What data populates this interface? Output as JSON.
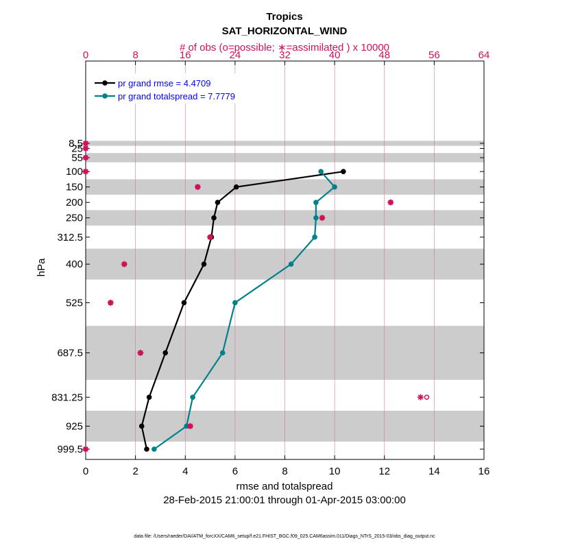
{
  "chart_data": {
    "type": "line",
    "title": "Tropics",
    "subtitle": "SAT_HORIZONTAL_WIND",
    "top_axis_label": "# of obs (o=possible; ∗=assimilated ) x 10000",
    "top_ticks": [
      "0",
      "8",
      "16",
      "24",
      "32",
      "40",
      "48",
      "56",
      "64"
    ],
    "top_range": [
      0,
      64
    ],
    "xlabel": "rmse and totalspread",
    "x_ticks": [
      "0",
      "2",
      "4",
      "6",
      "8",
      "10",
      "12",
      "14",
      "16"
    ],
    "xlim": [
      0,
      16
    ],
    "ylabel": "hPa",
    "y_levels": [
      8.5,
      25,
      55,
      100,
      150,
      200,
      250,
      312.5,
      400,
      525,
      687.5,
      831.25,
      925,
      999.5
    ],
    "y_tick_labels": [
      "8.5",
      "25",
      "55",
      "100",
      "150",
      "200",
      "250",
      "312.5",
      "400",
      "525",
      "687.5",
      "831.25",
      "925",
      "999.5"
    ],
    "date_range": "28-Feb-2015 21:00:01 through 01-Apr-2015 03:00:00",
    "footnote": "data file: /Users/raeder/DAI/ATM_forcXX/CAM6_setup/f.e21.FHIST_BGC.f09_025.CAM6assim.011/Diags_NTrS_2015-03/obs_diag_output.nc",
    "legend_position": "top-left",
    "shaded_bands": [
      [
        0.5,
        16.75
      ],
      [
        40,
        70
      ],
      [
        125,
        175
      ],
      [
        225,
        275
      ],
      [
        350,
        450
      ],
      [
        600,
        775
      ],
      [
        875,
        975
      ]
    ],
    "series": [
      {
        "name": "pr grand rmse = 4.4709",
        "color": "#000000",
        "levels": [
          100,
          150,
          200,
          250,
          312.5,
          400,
          525,
          687.5,
          831.25,
          925,
          999.5
        ],
        "values": [
          10.35,
          6.05,
          5.3,
          5.15,
          5.05,
          4.75,
          3.95,
          3.2,
          2.55,
          2.25,
          2.45
        ]
      },
      {
        "name": "pr grand totalspread = 7.7779",
        "color": "#00808a",
        "levels": [
          100,
          150,
          200,
          250,
          312.5,
          400,
          525,
          687.5,
          831.25,
          925,
          999.5
        ],
        "values": [
          9.45,
          10.0,
          9.25,
          9.25,
          9.2,
          8.25,
          6.0,
          5.5,
          4.3,
          4.05,
          2.75
        ]
      }
    ],
    "obs_assimilated": {
      "marker": "asterisk",
      "color": "#d0105a",
      "levels": [
        8.5,
        25,
        55,
        100,
        150,
        200,
        250,
        312.5,
        400,
        525,
        687.5,
        831.25,
        925,
        999.5
      ],
      "values": [
        0.0,
        0.0,
        0.0,
        0.0,
        18.0,
        49.0,
        38.0,
        20.0,
        6.2,
        4.0,
        8.8,
        53.8,
        16.8,
        0.0
      ]
    },
    "obs_possible": {
      "marker": "circle",
      "color": "#d0105a",
      "levels": [
        8.5,
        25,
        55,
        100,
        150,
        200,
        250,
        312.5,
        400,
        525,
        687.5,
        831.25,
        925,
        999.5
      ],
      "values": [
        0.0,
        0.0,
        0.0,
        0.0,
        18.0,
        49.0,
        38.0,
        20.0,
        6.2,
        4.0,
        8.8,
        54.8,
        16.8,
        0.0
      ]
    }
  }
}
